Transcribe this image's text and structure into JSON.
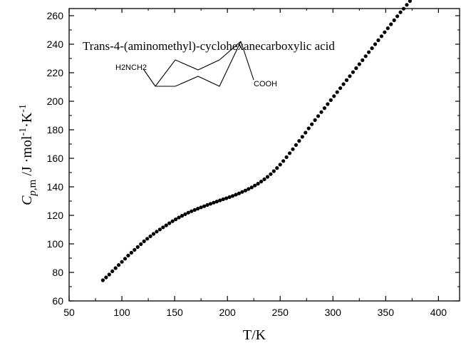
{
  "chart_data": {
    "type": "scatter",
    "xlabel": "T/K",
    "ylabel": {
      "symbol": "C",
      "subscript_italic": "p",
      "subscript_rest": ",m",
      "unit_start": " /J ·mol",
      "exp1": "-1",
      "unit_mid": "·K",
      "exp2": "-1"
    },
    "xlim": [
      50,
      420
    ],
    "ylim": [
      60,
      265
    ],
    "x_ticks": [
      "50",
      "100",
      "150",
      "200",
      "250",
      "300",
      "350",
      "400"
    ],
    "y_ticks": [
      "60",
      "80",
      "100",
      "120",
      "140",
      "160",
      "180",
      "200",
      "220",
      "240",
      "260"
    ],
    "annotation": "Trans-4-(aminomethyl)-cyclohexanecarboxylic acid",
    "structure_labels": {
      "left_group": "H2NCH2",
      "right_group": "COOH"
    },
    "marker_color": "#000000",
    "series": [
      {
        "points": [
          [
            82,
            74.5
          ],
          [
            85,
            76.5
          ],
          [
            88,
            78.5
          ],
          [
            91,
            80.8
          ],
          [
            94,
            83.0
          ],
          [
            97,
            85.2
          ],
          [
            100,
            87.4
          ],
          [
            103,
            89.6
          ],
          [
            106,
            91.8
          ],
          [
            109,
            93.8
          ],
          [
            112,
            95.8
          ],
          [
            115,
            97.8
          ],
          [
            118,
            99.8
          ],
          [
            121,
            101.8
          ],
          [
            124,
            103.6
          ],
          [
            127,
            105.3
          ],
          [
            130,
            107.0
          ],
          [
            133,
            108.6
          ],
          [
            136,
            110.1
          ],
          [
            139,
            111.6
          ],
          [
            142,
            113.0
          ],
          [
            145,
            114.5
          ],
          [
            148,
            115.9
          ],
          [
            151,
            117.2
          ],
          [
            154,
            118.5
          ],
          [
            157,
            119.7
          ],
          [
            160,
            120.8
          ],
          [
            163,
            121.9
          ],
          [
            166,
            122.9
          ],
          [
            169,
            123.8
          ],
          [
            172,
            124.7
          ],
          [
            175,
            125.6
          ],
          [
            178,
            126.4
          ],
          [
            181,
            127.3
          ],
          [
            184,
            128.1
          ],
          [
            187,
            128.9
          ],
          [
            190,
            129.7
          ],
          [
            193,
            130.5
          ],
          [
            196,
            131.3
          ],
          [
            199,
            132.0
          ],
          [
            202,
            132.8
          ],
          [
            205,
            133.6
          ],
          [
            208,
            134.5
          ],
          [
            211,
            135.4
          ],
          [
            214,
            136.4
          ],
          [
            217,
            137.4
          ],
          [
            220,
            138.5
          ],
          [
            223,
            139.6
          ],
          [
            226,
            140.9
          ],
          [
            229,
            142.2
          ],
          [
            232,
            143.7
          ],
          [
            235,
            145.3
          ],
          [
            238,
            147.0
          ],
          [
            241,
            148.9
          ],
          [
            244,
            151.0
          ],
          [
            247,
            153.2
          ],
          [
            250,
            155.6
          ],
          [
            253,
            158.1
          ],
          [
            256,
            160.8
          ],
          [
            259,
            163.6
          ],
          [
            262,
            166.4
          ],
          [
            265,
            169.3
          ],
          [
            268,
            172.2
          ],
          [
            271,
            175.1
          ],
          [
            274,
            178.0
          ],
          [
            277,
            181.0
          ],
          [
            280,
            183.9
          ],
          [
            283,
            186.8
          ],
          [
            286,
            189.6
          ],
          [
            289,
            192.4
          ],
          [
            292,
            195.2
          ],
          [
            295,
            198.0
          ],
          [
            298,
            200.8
          ],
          [
            301,
            203.6
          ],
          [
            304,
            206.4
          ],
          [
            307,
            209.2
          ],
          [
            310,
            212.0
          ],
          [
            313,
            214.8
          ],
          [
            316,
            217.6
          ],
          [
            319,
            220.4
          ],
          [
            322,
            223.2
          ],
          [
            325,
            226.0
          ],
          [
            328,
            228.8
          ],
          [
            331,
            231.6
          ],
          [
            334,
            234.4
          ],
          [
            337,
            237.2
          ],
          [
            340,
            240.0
          ],
          [
            343,
            242.8
          ],
          [
            346,
            245.6
          ],
          [
            349,
            248.4
          ],
          [
            352,
            251.2
          ],
          [
            355,
            254.0
          ],
          [
            358,
            256.8
          ],
          [
            361,
            259.6
          ],
          [
            364,
            262.4
          ],
          [
            367,
            264.9
          ],
          [
            370,
            267.6
          ],
          [
            373,
            270.3
          ],
          [
            376,
            273.0
          ]
        ]
      }
    ]
  }
}
